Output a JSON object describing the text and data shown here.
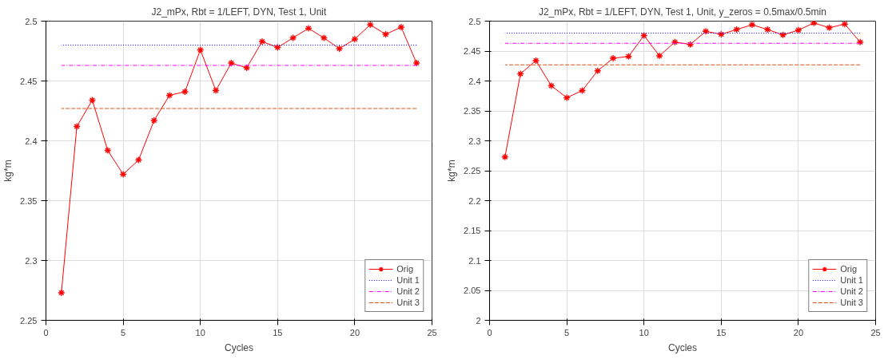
{
  "chart_data": [
    {
      "type": "line",
      "title": "J2_mPx, Rbt = 1/LEFT, DYN, Test 1, Unit",
      "xlabel": "Cycles",
      "ylabel": "kg*m",
      "xlim": [
        0,
        25
      ],
      "xticks": [
        0,
        5,
        10,
        15,
        20,
        25
      ],
      "ylim": [
        2.25,
        2.5
      ],
      "yticks": [
        2.25,
        2.3,
        2.35,
        2.4,
        2.45,
        2.5
      ],
      "grid": true,
      "legend": "bottom right",
      "series": [
        {
          "name": "Orig",
          "color": "#ff0000",
          "marker": "cross",
          "line_style": "solid",
          "x": [
            1,
            2,
            3,
            4,
            5,
            6,
            7,
            8,
            9,
            10,
            11,
            12,
            13,
            14,
            15,
            16,
            17,
            18,
            19,
            20,
            21,
            22,
            23,
            24
          ],
          "values": [
            2.273,
            2.412,
            2.434,
            2.392,
            2.372,
            2.384,
            2.417,
            2.438,
            2.441,
            2.476,
            2.442,
            2.465,
            2.461,
            2.483,
            2.478,
            2.486,
            2.494,
            2.486,
            2.477,
            2.485,
            2.497,
            2.489,
            2.495,
            2.465
          ]
        },
        {
          "name": "Unit 1",
          "color": "#0000ff",
          "marker": "none",
          "line_style": "dotted",
          "x": [
            1,
            24
          ],
          "values": [
            2.48,
            2.48
          ]
        },
        {
          "name": "Unit 2",
          "color": "#ff00ff",
          "marker": "none",
          "line_style": "dashdot",
          "x": [
            1,
            24
          ],
          "values": [
            2.463,
            2.463
          ]
        },
        {
          "name": "Unit 3",
          "color": "#d95319",
          "marker": "none",
          "line_style": "dashed",
          "x": [
            1,
            24
          ],
          "values": [
            2.427,
            2.427
          ]
        }
      ]
    },
    {
      "type": "line",
      "title": "J2_mPx, Rbt = 1/LEFT, DYN, Test 1, Unit, y_zeros = 0.5max/0.5min",
      "xlabel": "Cycles",
      "ylabel": "kg*m",
      "xlim": [
        0,
        25
      ],
      "xticks": [
        0,
        5,
        10,
        15,
        20,
        25
      ],
      "ylim": [
        2,
        2.5
      ],
      "yticks": [
        2,
        2.05,
        2.1,
        2.15,
        2.2,
        2.25,
        2.3,
        2.35,
        2.4,
        2.45,
        2.5
      ],
      "grid": true,
      "legend": "bottom right",
      "series": [
        {
          "name": "Orig",
          "color": "#ff0000",
          "marker": "cross",
          "line_style": "solid",
          "x": [
            1,
            2,
            3,
            4,
            5,
            6,
            7,
            8,
            9,
            10,
            11,
            12,
            13,
            14,
            15,
            16,
            17,
            18,
            19,
            20,
            21,
            22,
            23,
            24
          ],
          "values": [
            2.273,
            2.412,
            2.434,
            2.392,
            2.372,
            2.384,
            2.417,
            2.438,
            2.441,
            2.476,
            2.442,
            2.465,
            2.461,
            2.483,
            2.478,
            2.486,
            2.494,
            2.486,
            2.477,
            2.485,
            2.497,
            2.489,
            2.495,
            2.465
          ]
        },
        {
          "name": "Unit 1",
          "color": "#0000ff",
          "marker": "none",
          "line_style": "dotted",
          "x": [
            1,
            24
          ],
          "values": [
            2.48,
            2.48
          ]
        },
        {
          "name": "Unit 2",
          "color": "#ff00ff",
          "marker": "none",
          "line_style": "dashdot",
          "x": [
            1,
            24
          ],
          "values": [
            2.463,
            2.463
          ]
        },
        {
          "name": "Unit 3",
          "color": "#d95319",
          "marker": "none",
          "line_style": "dashed",
          "x": [
            1,
            24
          ],
          "values": [
            2.427,
            2.427
          ]
        }
      ]
    }
  ]
}
